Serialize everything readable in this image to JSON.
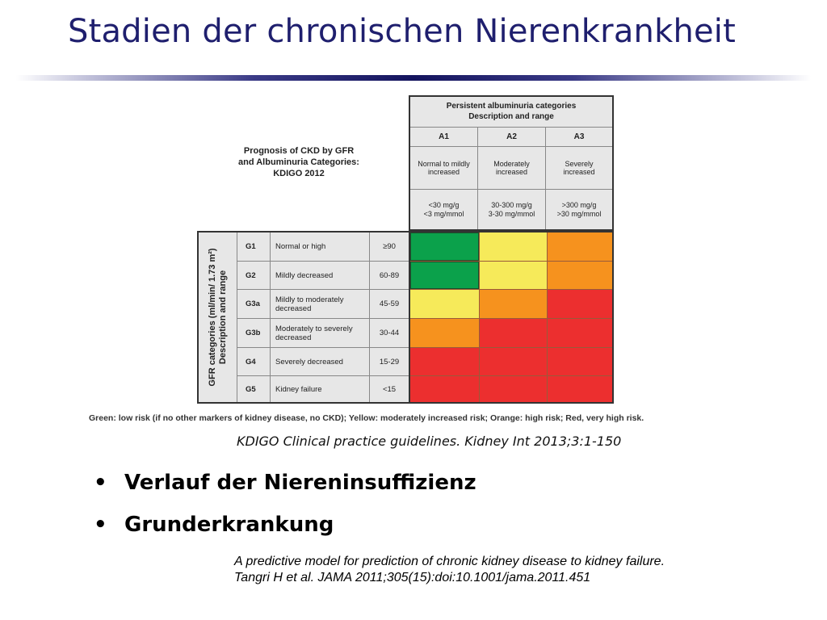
{
  "slide": {
    "title": "Stadien der chronischen Nierenkrankheit",
    "bullets": [
      "Verlauf der Niereninsuffizienz",
      "Grunderkrankung"
    ],
    "citation_kdigo": "KDIGO Clinical practice guidelines. Kidney Int 2013;3:1-150",
    "citation_tangri_line1": "A predictive model for prediction of chronic kidney disease to kidney failure.",
    "citation_tangri_line2": "Tangri H et al. JAMA 2011;305(15):doi:10.1001/jama.2011.451"
  },
  "figure": {
    "heading_lines": [
      "Prognosis of CKD by GFR",
      "and Albuminuria Categories:",
      "KDIGO 2012"
    ],
    "albuminuria_header_lines": [
      "Persistent albuminuria categories",
      "Description and range"
    ],
    "albuminuria": [
      {
        "code": "A1",
        "desc": "Normal to mildly increased",
        "range_line1": "<30 mg/g",
        "range_line2": "<3 mg/mmol"
      },
      {
        "code": "A2",
        "desc": "Moderately increased",
        "range_line1": "30-300 mg/g",
        "range_line2": "3-30 mg/mmol"
      },
      {
        "code": "A3",
        "desc": "Severely increased",
        "range_line1": ">300 mg/g",
        "range_line2": ">30 mg/mmol"
      }
    ],
    "gfr_axis_lines": [
      "GFR categories (ml/min/ 1.73 m²)",
      "Description and range"
    ],
    "gfr": [
      {
        "code": "G1",
        "desc": "Normal or high",
        "range": "≥90"
      },
      {
        "code": "G2",
        "desc": "Mildly decreased",
        "range": "60-89"
      },
      {
        "code": "G3a",
        "desc": "Mildly to moderately decreased",
        "range": "45-59"
      },
      {
        "code": "G3b",
        "desc": "Moderately to severely decreased",
        "range": "30-44"
      },
      {
        "code": "G4",
        "desc": "Severely decreased",
        "range": "15-29"
      },
      {
        "code": "G5",
        "desc": "Kidney failure",
        "range": "<15"
      }
    ],
    "risk_grid": [
      [
        "green",
        "yellow",
        "orange"
      ],
      [
        "green",
        "yellow",
        "orange"
      ],
      [
        "yellow",
        "orange",
        "red"
      ],
      [
        "orange",
        "red",
        "red"
      ],
      [
        "red",
        "red",
        "red"
      ],
      [
        "red",
        "red",
        "red"
      ]
    ],
    "risk_colors": {
      "green": "#0ba14b",
      "yellow": "#f6ea5a",
      "orange": "#f6921e",
      "red": "#ec2f2f"
    },
    "legend": "Green: low risk (if no other markers of kidney disease, no CKD); Yellow: moderately increased risk; Orange: high risk; Red, very high risk."
  },
  "theme": {
    "title_color": "#1f1f6e"
  }
}
